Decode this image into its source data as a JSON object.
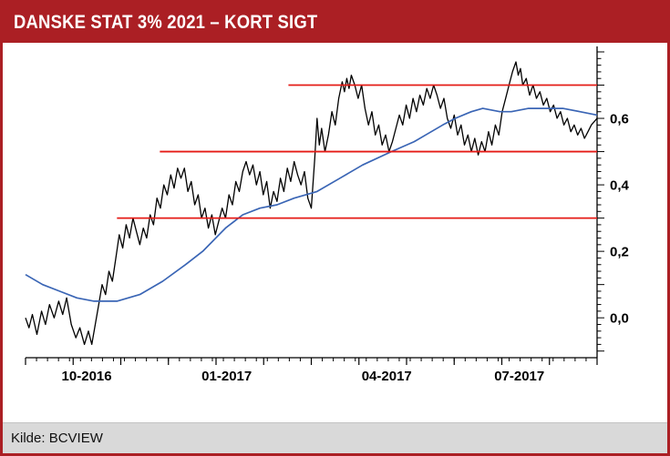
{
  "header": {
    "title": "DANSKE STAT 3% 2021 – KORT SIGT"
  },
  "footer": {
    "source": "Kilde: BCVIEW"
  },
  "colors": {
    "header_bg": "#AB1F24",
    "border": "#AB1F24",
    "footer_bg": "#D9D9D9",
    "axis": "#000000",
    "price_line": "#000000",
    "ma_line": "#3A65B5",
    "level_line": "#E51B16"
  },
  "chart_data": {
    "type": "line",
    "title": "DANSKE STAT 3% 2021 – KORT SIGT",
    "xlabel": "",
    "ylabel": "",
    "ylim": [
      -0.12,
      0.8
    ],
    "grid": false,
    "legend": "none",
    "y_axis_side": "right",
    "y_ticks": [
      {
        "v": 0.0,
        "label": "0,0"
      },
      {
        "v": 0.2,
        "label": "0,2"
      },
      {
        "v": 0.4,
        "label": "0,4"
      },
      {
        "v": 0.6,
        "label": "0,6"
      }
    ],
    "x_labels": [
      {
        "f": 0.107,
        "label": "10-2016"
      },
      {
        "f": 0.352,
        "label": "01-2017"
      },
      {
        "f": 0.632,
        "label": "04-2017"
      },
      {
        "f": 0.864,
        "label": "07-2017"
      }
    ],
    "h_lines": [
      {
        "level": 0.3,
        "from": 0.16,
        "to": 1.0
      },
      {
        "level": 0.5,
        "from": 0.235,
        "to": 1.0
      },
      {
        "level": 0.7,
        "from": 0.46,
        "to": 1.0
      }
    ],
    "series": [
      {
        "name": "price",
        "color": "#000000",
        "width": 1.3,
        "points": [
          [
            0.0,
            0.0
          ],
          [
            0.006,
            -0.03
          ],
          [
            0.012,
            0.01
          ],
          [
            0.02,
            -0.05
          ],
          [
            0.028,
            0.02
          ],
          [
            0.035,
            -0.02
          ],
          [
            0.042,
            0.04
          ],
          [
            0.05,
            0.0
          ],
          [
            0.058,
            0.05
          ],
          [
            0.065,
            0.01
          ],
          [
            0.072,
            0.06
          ],
          [
            0.08,
            -0.02
          ],
          [
            0.088,
            -0.06
          ],
          [
            0.095,
            -0.03
          ],
          [
            0.103,
            -0.08
          ],
          [
            0.11,
            -0.04
          ],
          [
            0.116,
            -0.08
          ],
          [
            0.122,
            -0.02
          ],
          [
            0.128,
            0.04
          ],
          [
            0.134,
            0.1
          ],
          [
            0.14,
            0.07
          ],
          [
            0.146,
            0.14
          ],
          [
            0.152,
            0.11
          ],
          [
            0.158,
            0.18
          ],
          [
            0.164,
            0.25
          ],
          [
            0.17,
            0.21
          ],
          [
            0.176,
            0.28
          ],
          [
            0.182,
            0.24
          ],
          [
            0.188,
            0.3
          ],
          [
            0.194,
            0.26
          ],
          [
            0.2,
            0.22
          ],
          [
            0.206,
            0.27
          ],
          [
            0.212,
            0.24
          ],
          [
            0.218,
            0.31
          ],
          [
            0.224,
            0.28
          ],
          [
            0.23,
            0.36
          ],
          [
            0.236,
            0.33
          ],
          [
            0.242,
            0.4
          ],
          [
            0.248,
            0.37
          ],
          [
            0.254,
            0.43
          ],
          [
            0.26,
            0.39
          ],
          [
            0.266,
            0.45
          ],
          [
            0.272,
            0.42
          ],
          [
            0.278,
            0.45
          ],
          [
            0.284,
            0.38
          ],
          [
            0.29,
            0.41
          ],
          [
            0.296,
            0.34
          ],
          [
            0.302,
            0.37
          ],
          [
            0.308,
            0.3
          ],
          [
            0.314,
            0.33
          ],
          [
            0.32,
            0.27
          ],
          [
            0.326,
            0.31
          ],
          [
            0.332,
            0.25
          ],
          [
            0.338,
            0.29
          ],
          [
            0.344,
            0.33
          ],
          [
            0.35,
            0.3
          ],
          [
            0.356,
            0.37
          ],
          [
            0.362,
            0.34
          ],
          [
            0.368,
            0.41
          ],
          [
            0.374,
            0.38
          ],
          [
            0.38,
            0.44
          ],
          [
            0.386,
            0.47
          ],
          [
            0.392,
            0.43
          ],
          [
            0.398,
            0.46
          ],
          [
            0.404,
            0.4
          ],
          [
            0.41,
            0.44
          ],
          [
            0.416,
            0.37
          ],
          [
            0.422,
            0.41
          ],
          [
            0.428,
            0.33
          ],
          [
            0.434,
            0.38
          ],
          [
            0.44,
            0.35
          ],
          [
            0.446,
            0.42
          ],
          [
            0.452,
            0.38
          ],
          [
            0.458,
            0.45
          ],
          [
            0.464,
            0.41
          ],
          [
            0.47,
            0.47
          ],
          [
            0.476,
            0.43
          ],
          [
            0.482,
            0.4
          ],
          [
            0.488,
            0.44
          ],
          [
            0.494,
            0.36
          ],
          [
            0.5,
            0.33
          ],
          [
            0.506,
            0.48
          ],
          [
            0.51,
            0.6
          ],
          [
            0.514,
            0.52
          ],
          [
            0.518,
            0.57
          ],
          [
            0.524,
            0.5
          ],
          [
            0.53,
            0.55
          ],
          [
            0.536,
            0.62
          ],
          [
            0.542,
            0.58
          ],
          [
            0.548,
            0.66
          ],
          [
            0.554,
            0.71
          ],
          [
            0.558,
            0.68
          ],
          [
            0.562,
            0.72
          ],
          [
            0.566,
            0.69
          ],
          [
            0.57,
            0.73
          ],
          [
            0.576,
            0.7
          ],
          [
            0.582,
            0.66
          ],
          [
            0.588,
            0.7
          ],
          [
            0.594,
            0.63
          ],
          [
            0.6,
            0.58
          ],
          [
            0.606,
            0.62
          ],
          [
            0.612,
            0.55
          ],
          [
            0.618,
            0.58
          ],
          [
            0.624,
            0.52
          ],
          [
            0.63,
            0.55
          ],
          [
            0.636,
            0.5
          ],
          [
            0.642,
            0.53
          ],
          [
            0.648,
            0.57
          ],
          [
            0.654,
            0.61
          ],
          [
            0.66,
            0.58
          ],
          [
            0.666,
            0.64
          ],
          [
            0.672,
            0.6
          ],
          [
            0.678,
            0.66
          ],
          [
            0.684,
            0.62
          ],
          [
            0.69,
            0.67
          ],
          [
            0.696,
            0.64
          ],
          [
            0.702,
            0.69
          ],
          [
            0.708,
            0.66
          ],
          [
            0.714,
            0.7
          ],
          [
            0.72,
            0.67
          ],
          [
            0.726,
            0.63
          ],
          [
            0.732,
            0.66
          ],
          [
            0.738,
            0.6
          ],
          [
            0.744,
            0.57
          ],
          [
            0.75,
            0.61
          ],
          [
            0.756,
            0.55
          ],
          [
            0.762,
            0.58
          ],
          [
            0.768,
            0.52
          ],
          [
            0.774,
            0.55
          ],
          [
            0.78,
            0.5
          ],
          [
            0.786,
            0.54
          ],
          [
            0.792,
            0.49
          ],
          [
            0.798,
            0.53
          ],
          [
            0.804,
            0.5
          ],
          [
            0.81,
            0.56
          ],
          [
            0.816,
            0.52
          ],
          [
            0.822,
            0.58
          ],
          [
            0.828,
            0.55
          ],
          [
            0.834,
            0.62
          ],
          [
            0.84,
            0.66
          ],
          [
            0.846,
            0.7
          ],
          [
            0.852,
            0.74
          ],
          [
            0.858,
            0.77
          ],
          [
            0.862,
            0.73
          ],
          [
            0.866,
            0.75
          ],
          [
            0.87,
            0.7
          ],
          [
            0.876,
            0.72
          ],
          [
            0.882,
            0.67
          ],
          [
            0.888,
            0.7
          ],
          [
            0.894,
            0.66
          ],
          [
            0.9,
            0.68
          ],
          [
            0.906,
            0.64
          ],
          [
            0.912,
            0.66
          ],
          [
            0.918,
            0.62
          ],
          [
            0.924,
            0.64
          ],
          [
            0.93,
            0.6
          ],
          [
            0.936,
            0.62
          ],
          [
            0.942,
            0.58
          ],
          [
            0.948,
            0.6
          ],
          [
            0.954,
            0.56
          ],
          [
            0.96,
            0.58
          ],
          [
            0.966,
            0.55
          ],
          [
            0.972,
            0.57
          ],
          [
            0.978,
            0.54
          ],
          [
            0.984,
            0.56
          ],
          [
            0.99,
            0.58
          ],
          [
            1.0,
            0.6
          ]
        ]
      },
      {
        "name": "moving-average",
        "color": "#3A65B5",
        "width": 1.7,
        "points": [
          [
            0.0,
            0.13
          ],
          [
            0.03,
            0.1
          ],
          [
            0.06,
            0.08
          ],
          [
            0.09,
            0.06
          ],
          [
            0.12,
            0.05
          ],
          [
            0.16,
            0.05
          ],
          [
            0.2,
            0.07
          ],
          [
            0.24,
            0.11
          ],
          [
            0.28,
            0.16
          ],
          [
            0.31,
            0.2
          ],
          [
            0.35,
            0.27
          ],
          [
            0.38,
            0.31
          ],
          [
            0.41,
            0.33
          ],
          [
            0.44,
            0.34
          ],
          [
            0.47,
            0.36
          ],
          [
            0.51,
            0.38
          ],
          [
            0.55,
            0.42
          ],
          [
            0.59,
            0.46
          ],
          [
            0.64,
            0.5
          ],
          [
            0.68,
            0.53
          ],
          [
            0.7,
            0.55
          ],
          [
            0.73,
            0.58
          ],
          [
            0.752,
            0.6
          ],
          [
            0.78,
            0.62
          ],
          [
            0.8,
            0.63
          ],
          [
            0.83,
            0.62
          ],
          [
            0.85,
            0.62
          ],
          [
            0.88,
            0.63
          ],
          [
            0.91,
            0.63
          ],
          [
            0.94,
            0.63
          ],
          [
            0.97,
            0.62
          ],
          [
            1.0,
            0.61
          ]
        ]
      }
    ]
  }
}
